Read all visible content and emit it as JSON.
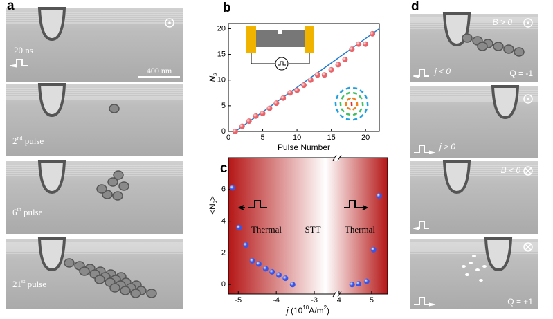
{
  "panel_labels": [
    "a",
    "b",
    "c",
    "d"
  ],
  "panel_a": {
    "pulse_width": "20 ns",
    "scale_bar": "400 nm",
    "captions": [
      {
        "number": "2",
        "suffix": "nd",
        "text": " pulse"
      },
      {
        "number": "6",
        "suffix": "th",
        "text": " pulse"
      },
      {
        "number": "21",
        "suffix": "st",
        "text": " pulse"
      }
    ]
  },
  "panel_d": {
    "field_pos": "B > 0",
    "current_neg": "j < 0",
    "charge_neg": "Q = -1",
    "current_pos": "j > 0",
    "field_neg": "B < 0",
    "charge_pos": "Q = +1"
  },
  "chart_data": [
    {
      "type": "scatter",
      "xlabel": "Pulse Number",
      "ylabel": "N",
      "ylabel_sub": "s",
      "xlim": [
        0,
        22
      ],
      "ylim": [
        0,
        21
      ],
      "xticks": [
        0,
        5,
        10,
        15,
        20
      ],
      "yticks": [
        0,
        5,
        10,
        15,
        20
      ],
      "series": [
        {
          "type": "scatter",
          "color": "#e8646a",
          "x": [
            1,
            2,
            3,
            4,
            5,
            6,
            7,
            8,
            9,
            10,
            11,
            12,
            13,
            14,
            15,
            16,
            17,
            18,
            19,
            20,
            21
          ],
          "values": [
            0,
            1,
            2,
            3,
            3.5,
            4.5,
            5.5,
            6.5,
            7.5,
            8,
            9,
            10,
            11,
            11,
            12,
            13,
            14,
            16,
            17,
            17,
            19
          ]
        },
        {
          "type": "line",
          "color": "#1f78d1",
          "x": [
            1,
            22
          ],
          "values": [
            0,
            20
          ]
        }
      ]
    },
    {
      "type": "scatter",
      "xlabel_parts": [
        "j",
        " (10",
        "10",
        "A/m",
        "2",
        ")"
      ],
      "ylabel_parts": [
        "<N",
        "s",
        ">"
      ],
      "xlim": [
        -5.26,
        5.49
      ],
      "xbreak": [
        -2.4,
        3.94
      ],
      "ylim": [
        -0.6,
        8
      ],
      "xticks": [
        -5,
        -4,
        -3,
        4,
        5
      ],
      "yticks": [
        0,
        2,
        4,
        6
      ],
      "regions": [
        "Thermal",
        "STT",
        "Thermal"
      ],
      "background_color": "#b51616",
      "series": [
        {
          "color": "#3a55e6",
          "x": [
            -5.15,
            -4.98,
            -4.8,
            -4.63,
            -4.46,
            -4.28,
            -4.11,
            -3.93,
            -3.76,
            -3.57,
            4.4,
            4.6,
            4.85,
            5.06,
            5.23
          ],
          "values": [
            6.1,
            3.6,
            2.5,
            1.5,
            1.3,
            1.0,
            0.8,
            0.6,
            0.4,
            0.0,
            0.0,
            0.05,
            0.2,
            2.2,
            5.6
          ]
        }
      ]
    }
  ]
}
